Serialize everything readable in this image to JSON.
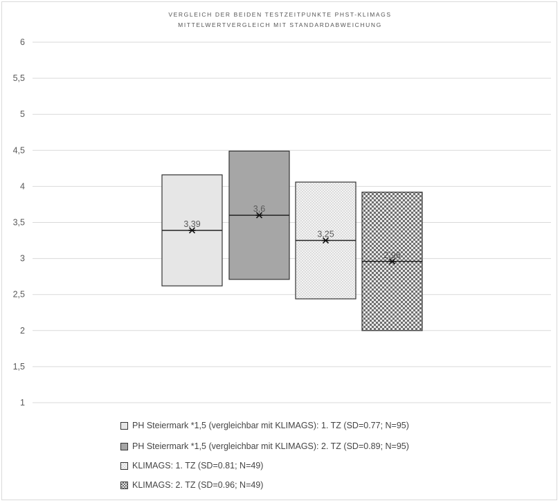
{
  "chart_data": {
    "type": "box",
    "title": "VERGLEICH DER BEIDEN TESTZEITPUNKTE PHST-KLIMAGS",
    "subtitle": "MITTELWERTVERGLEICH MIT STANDARDABWEICHUNG",
    "ylim": [
      1,
      6
    ],
    "yticks": [
      "1",
      "1,5",
      "2",
      "2,5",
      "3",
      "3,5",
      "4",
      "4,5",
      "5",
      "5,5",
      "6"
    ],
    "ytick_values": [
      1,
      1.5,
      2,
      2.5,
      3,
      3.5,
      4,
      4.5,
      5,
      5.5,
      6
    ],
    "grid": true,
    "legend_position": "bottom",
    "series": [
      {
        "name": "PH Steiermark *1,5 (vergleichbar mit KLIMAGS): 1. TZ (SD=0.77; N=95)",
        "mean": 3.39,
        "mean_label": "3,39",
        "low": 2.62,
        "high": 4.16,
        "fill": "#e6e6e6",
        "pattern": "solid"
      },
      {
        "name": "PH Steiermark *1,5 (vergleichbar mit KLIMAGS): 2. TZ (SD=0.89; N=95)",
        "mean": 3.6,
        "mean_label": "3,6",
        "low": 2.71,
        "high": 4.49,
        "fill": "#a6a6a6",
        "pattern": "solid"
      },
      {
        "name": "KLIMAGS: 1. TZ (SD=0.81; N=49)",
        "mean": 3.25,
        "mean_label": "3,25",
        "low": 2.44,
        "high": 4.06,
        "fill": "#f2f2f2",
        "pattern": "fine-check"
      },
      {
        "name": "KLIMAGS: 2. TZ (SD=0.96; N=49)",
        "mean": 2.96,
        "mean_label": "2,96",
        "low": 2.0,
        "high": 3.92,
        "fill": "#9a9a9a",
        "pattern": "coarse-check"
      }
    ]
  }
}
